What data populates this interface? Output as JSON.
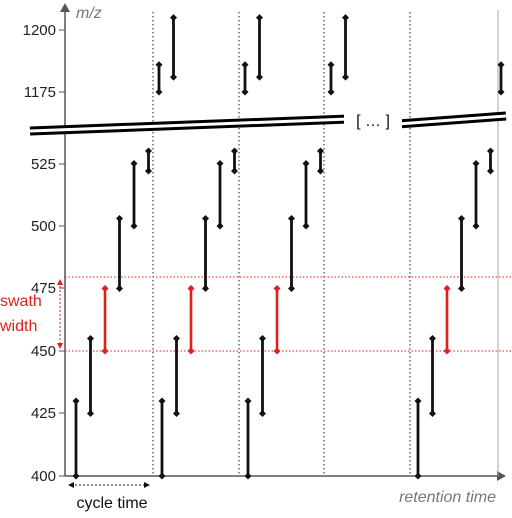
{
  "y_axis": {
    "title": "m/z",
    "ticks_lower": [
      "400",
      "425",
      "450",
      "475",
      "500",
      "525"
    ],
    "ticks_upper": [
      "1175",
      "1200"
    ]
  },
  "x_axis": {
    "title": "retention time"
  },
  "annotations": {
    "swath_line1": "swath",
    "swath_line2": "width",
    "cycle_time": "cycle time",
    "ellipsis": "[ … ]"
  },
  "colors": {
    "scan": "#111111",
    "highlight": "#e0201a",
    "axis": "#555555"
  },
  "chart_data": {
    "type": "diagram",
    "cycles": 4,
    "lower_windows": [
      [
        400,
        430
      ],
      [
        425,
        455
      ],
      [
        450,
        475
      ],
      [
        475,
        503
      ],
      [
        500,
        525
      ],
      [
        522,
        530
      ]
    ],
    "upper_windows": [
      [
        1175,
        1186
      ],
      [
        1181,
        1205
      ]
    ],
    "highlighted_window": [
      450,
      475
    ]
  }
}
